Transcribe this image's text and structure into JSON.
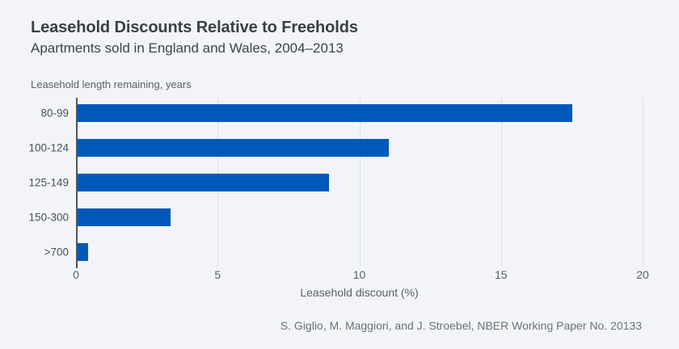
{
  "chart_data": {
    "type": "bar",
    "orientation": "horizontal",
    "title": "Leasehold Discounts Relative to Freeholds",
    "subtitle": "Apartments sold in England and Wales, 2004–2013",
    "category_axis_note": "Leasehold length remaining, years",
    "categories": [
      "80-99",
      "100-124",
      "125-149",
      "150-300",
      ">700"
    ],
    "values": [
      17.5,
      11.0,
      8.9,
      3.3,
      0.4
    ],
    "xlabel": "Leasehold discount (%)",
    "xlim": [
      0,
      20
    ],
    "xticks": [
      0,
      5,
      10,
      15,
      20
    ],
    "grid": "vertical",
    "legend": "none"
  },
  "footer": {
    "credit": "S. Giglio, M. Maggiori, and J. Stroebel, NBER Working Paper No. 20133"
  },
  "colors": {
    "background": "#f2f4f8",
    "bar": "#0059b8",
    "axis_line": "#4f555e",
    "gridline": "#dbe0e7",
    "title_text": "#3a3f46",
    "subtitle_text": "#3f444b",
    "muted_text": "#5a6069",
    "category_label_text": "#4b5059",
    "footer_text": "#6b7179"
  }
}
